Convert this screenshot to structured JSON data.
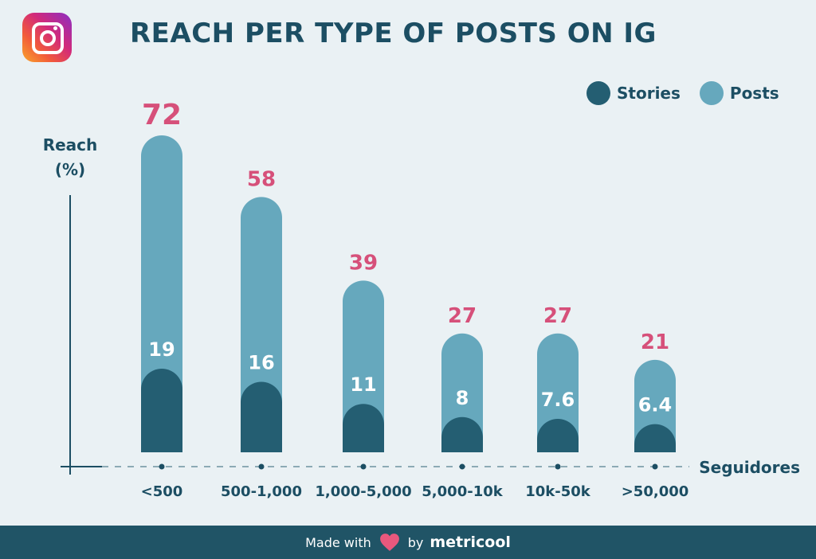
{
  "title": "REACH PER TYPE OF POSTS ON IG",
  "legend": {
    "stories": "Stories",
    "posts": "Posts"
  },
  "colors": {
    "stories": "#245e72",
    "posts": "#66a8bd",
    "accent": "#d6507a",
    "text": "#1c4e63",
    "footer": "#205466"
  },
  "footer": {
    "made_with": "Made with",
    "by": "by",
    "brand": "metricool"
  },
  "icons": {
    "logo": "instagram-logo",
    "heart": "heart-icon"
  },
  "chart_data": {
    "type": "bar",
    "title": "REACH PER TYPE OF POSTS ON IG",
    "ylabel_lines": [
      "Reach",
      "(%)"
    ],
    "xlabel": "Seguidores",
    "categories": [
      "<500",
      "500-1,000",
      "1,000-5,000",
      "5,000-10k",
      "10k-50k",
      ">50,000"
    ],
    "series": [
      {
        "name": "Posts",
        "values": [
          72,
          58,
          39,
          27,
          27,
          21
        ],
        "labels": [
          "72",
          "58",
          "39",
          "27",
          "27",
          "21"
        ]
      },
      {
        "name": "Stories",
        "values": [
          19,
          16,
          11,
          8,
          7.6,
          6.4
        ],
        "labels": [
          "19",
          "16",
          "11",
          "8",
          "7.6",
          "6.4"
        ]
      }
    ],
    "ylim": [
      0,
      72
    ],
    "legend_position": "top-right",
    "grid": false
  }
}
